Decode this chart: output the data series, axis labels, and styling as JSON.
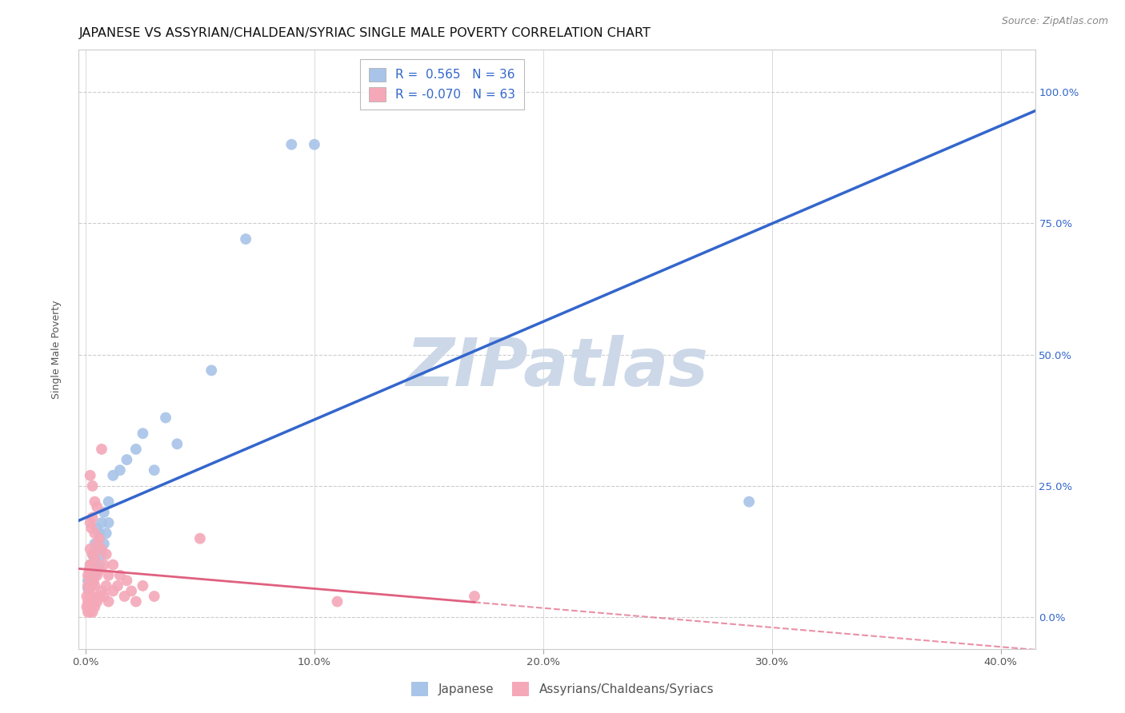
{
  "title": "JAPANESE VS ASSYRIAN/CHALDEAN/SYRIAC SINGLE MALE POVERTY CORRELATION CHART",
  "source": "Source: ZipAtlas.com",
  "ylabel": "Single Male Poverty",
  "xlabel_ticks": [
    "0.0%",
    "10.0%",
    "20.0%",
    "30.0%",
    "40.0%"
  ],
  "xlabel_vals": [
    0.0,
    0.1,
    0.2,
    0.3,
    0.4
  ],
  "ylabel_ticks": [
    "0.0%",
    "25.0%",
    "50.0%",
    "75.0%",
    "100.0%"
  ],
  "ylabel_vals": [
    0.0,
    0.25,
    0.5,
    0.75,
    1.0
  ],
  "xlim": [
    -0.003,
    0.415
  ],
  "ylim": [
    -0.06,
    1.08
  ],
  "watermark": "ZIPatlas",
  "blue_scatter": [
    [
      0.001,
      0.055
    ],
    [
      0.001,
      0.07
    ],
    [
      0.002,
      0.06
    ],
    [
      0.002,
      0.08
    ],
    [
      0.002,
      0.1
    ],
    [
      0.003,
      0.065
    ],
    [
      0.003,
      0.09
    ],
    [
      0.003,
      0.12
    ],
    [
      0.004,
      0.08
    ],
    [
      0.004,
      0.11
    ],
    [
      0.004,
      0.14
    ],
    [
      0.005,
      0.09
    ],
    [
      0.005,
      0.13
    ],
    [
      0.005,
      0.17
    ],
    [
      0.006,
      0.1
    ],
    [
      0.006,
      0.16
    ],
    [
      0.007,
      0.12
    ],
    [
      0.007,
      0.18
    ],
    [
      0.008,
      0.14
    ],
    [
      0.008,
      0.2
    ],
    [
      0.009,
      0.16
    ],
    [
      0.01,
      0.18
    ],
    [
      0.01,
      0.22
    ],
    [
      0.012,
      0.27
    ],
    [
      0.015,
      0.28
    ],
    [
      0.018,
      0.3
    ],
    [
      0.022,
      0.32
    ],
    [
      0.025,
      0.35
    ],
    [
      0.03,
      0.28
    ],
    [
      0.035,
      0.38
    ],
    [
      0.04,
      0.33
    ],
    [
      0.055,
      0.47
    ],
    [
      0.07,
      0.72
    ],
    [
      0.09,
      0.9
    ],
    [
      0.1,
      0.9
    ],
    [
      0.29,
      0.22
    ]
  ],
  "pink_scatter": [
    [
      0.0005,
      0.02
    ],
    [
      0.0005,
      0.04
    ],
    [
      0.001,
      0.01
    ],
    [
      0.001,
      0.03
    ],
    [
      0.001,
      0.06
    ],
    [
      0.001,
      0.08
    ],
    [
      0.0015,
      0.02
    ],
    [
      0.0015,
      0.05
    ],
    [
      0.0015,
      0.09
    ],
    [
      0.002,
      0.01
    ],
    [
      0.002,
      0.04
    ],
    [
      0.002,
      0.07
    ],
    [
      0.002,
      0.1
    ],
    [
      0.002,
      0.13
    ],
    [
      0.002,
      0.18
    ],
    [
      0.002,
      0.27
    ],
    [
      0.0025,
      0.02
    ],
    [
      0.0025,
      0.06
    ],
    [
      0.0025,
      0.1
    ],
    [
      0.0025,
      0.17
    ],
    [
      0.003,
      0.01
    ],
    [
      0.003,
      0.04
    ],
    [
      0.003,
      0.08
    ],
    [
      0.003,
      0.12
    ],
    [
      0.003,
      0.19
    ],
    [
      0.003,
      0.25
    ],
    [
      0.0035,
      0.03
    ],
    [
      0.0035,
      0.07
    ],
    [
      0.0035,
      0.12
    ],
    [
      0.004,
      0.02
    ],
    [
      0.004,
      0.06
    ],
    [
      0.004,
      0.11
    ],
    [
      0.004,
      0.16
    ],
    [
      0.004,
      0.22
    ],
    [
      0.005,
      0.03
    ],
    [
      0.005,
      0.08
    ],
    [
      0.005,
      0.14
    ],
    [
      0.005,
      0.21
    ],
    [
      0.006,
      0.04
    ],
    [
      0.006,
      0.09
    ],
    [
      0.006,
      0.15
    ],
    [
      0.007,
      0.05
    ],
    [
      0.007,
      0.13
    ],
    [
      0.007,
      0.32
    ],
    [
      0.008,
      0.04
    ],
    [
      0.008,
      0.1
    ],
    [
      0.009,
      0.06
    ],
    [
      0.009,
      0.12
    ],
    [
      0.01,
      0.03
    ],
    [
      0.01,
      0.08
    ],
    [
      0.012,
      0.05
    ],
    [
      0.012,
      0.1
    ],
    [
      0.014,
      0.06
    ],
    [
      0.015,
      0.08
    ],
    [
      0.017,
      0.04
    ],
    [
      0.018,
      0.07
    ],
    [
      0.02,
      0.05
    ],
    [
      0.022,
      0.03
    ],
    [
      0.025,
      0.06
    ],
    [
      0.03,
      0.04
    ],
    [
      0.05,
      0.15
    ],
    [
      0.11,
      0.03
    ],
    [
      0.17,
      0.04
    ]
  ],
  "blue_line_color": "#3366cc",
  "pink_line_color": "#e06080",
  "scatter_size": 100,
  "blue_scatter_color": "#a8c4e8",
  "pink_scatter_color": "#f4a8b8",
  "grid_color": "#cccccc",
  "background_color": "#ffffff",
  "title_fontsize": 11.5,
  "axis_label_fontsize": 9,
  "tick_fontsize": 9.5,
  "source_fontsize": 9,
  "watermark_color": "#ccd8e8",
  "watermark_fontsize": 60
}
